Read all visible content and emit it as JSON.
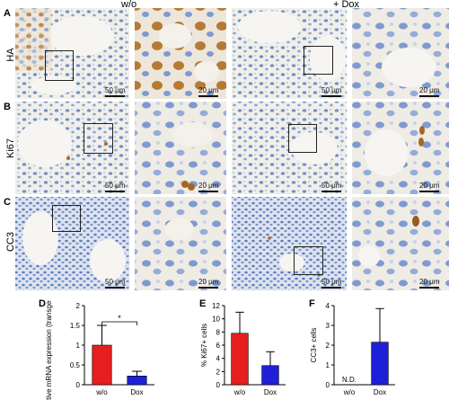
{
  "panels": {
    "A": "A",
    "B": "B",
    "C": "C",
    "D": "D",
    "E": "E",
    "F": "F"
  },
  "column_titles": {
    "left": "w/o",
    "right": "+ Dox"
  },
  "row_labels": {
    "A": "HA",
    "B": "Ki67",
    "C": "CC3"
  },
  "scale_bars": {
    "low": "50 μm",
    "high": "20 μm"
  },
  "colors": {
    "red": "#e61e1e",
    "blue": "#1f1fd8",
    "tissue_blue": "#8aa6d6",
    "stain_brown": "#a86a2a"
  },
  "chart_data": [
    {
      "type": "bar",
      "categories": [
        "w/o",
        "Dox"
      ],
      "values": [
        1.0,
        0.22
      ],
      "errors": [
        0.5,
        0.12
      ],
      "ylabel": "Relative mRNA expression (transgene/28S)",
      "ylim": [
        0,
        2
      ],
      "yticks": [
        "0",
        "0.5",
        "1",
        "1.5",
        "2"
      ],
      "annotation": "*",
      "bar_colors": [
        "#e61e1e",
        "#1f1fd8"
      ]
    },
    {
      "type": "bar",
      "categories": [
        "w/o",
        "Dox"
      ],
      "values": [
        7.8,
        2.9
      ],
      "errors": [
        3.2,
        2.1
      ],
      "ylabel": "% Ki67+ cells",
      "ylim": [
        0,
        12
      ],
      "yticks": [
        "0",
        "2",
        "4",
        "6",
        "8",
        "10",
        "12"
      ],
      "bar_colors": [
        "#e61e1e",
        "#1f1fd8"
      ]
    },
    {
      "type": "bar",
      "categories": [
        "w/o",
        "Dox"
      ],
      "values": [
        0,
        2.15
      ],
      "errors": [
        0,
        1.7
      ],
      "ylabel": "CC3+ cells",
      "ylim": [
        0,
        4
      ],
      "yticks": [
        "0",
        "1",
        "2",
        "3",
        "4"
      ],
      "value_labels": [
        "N.D.",
        ""
      ],
      "bar_colors": [
        "#e61e1e",
        "#1f1fd8"
      ]
    }
  ]
}
